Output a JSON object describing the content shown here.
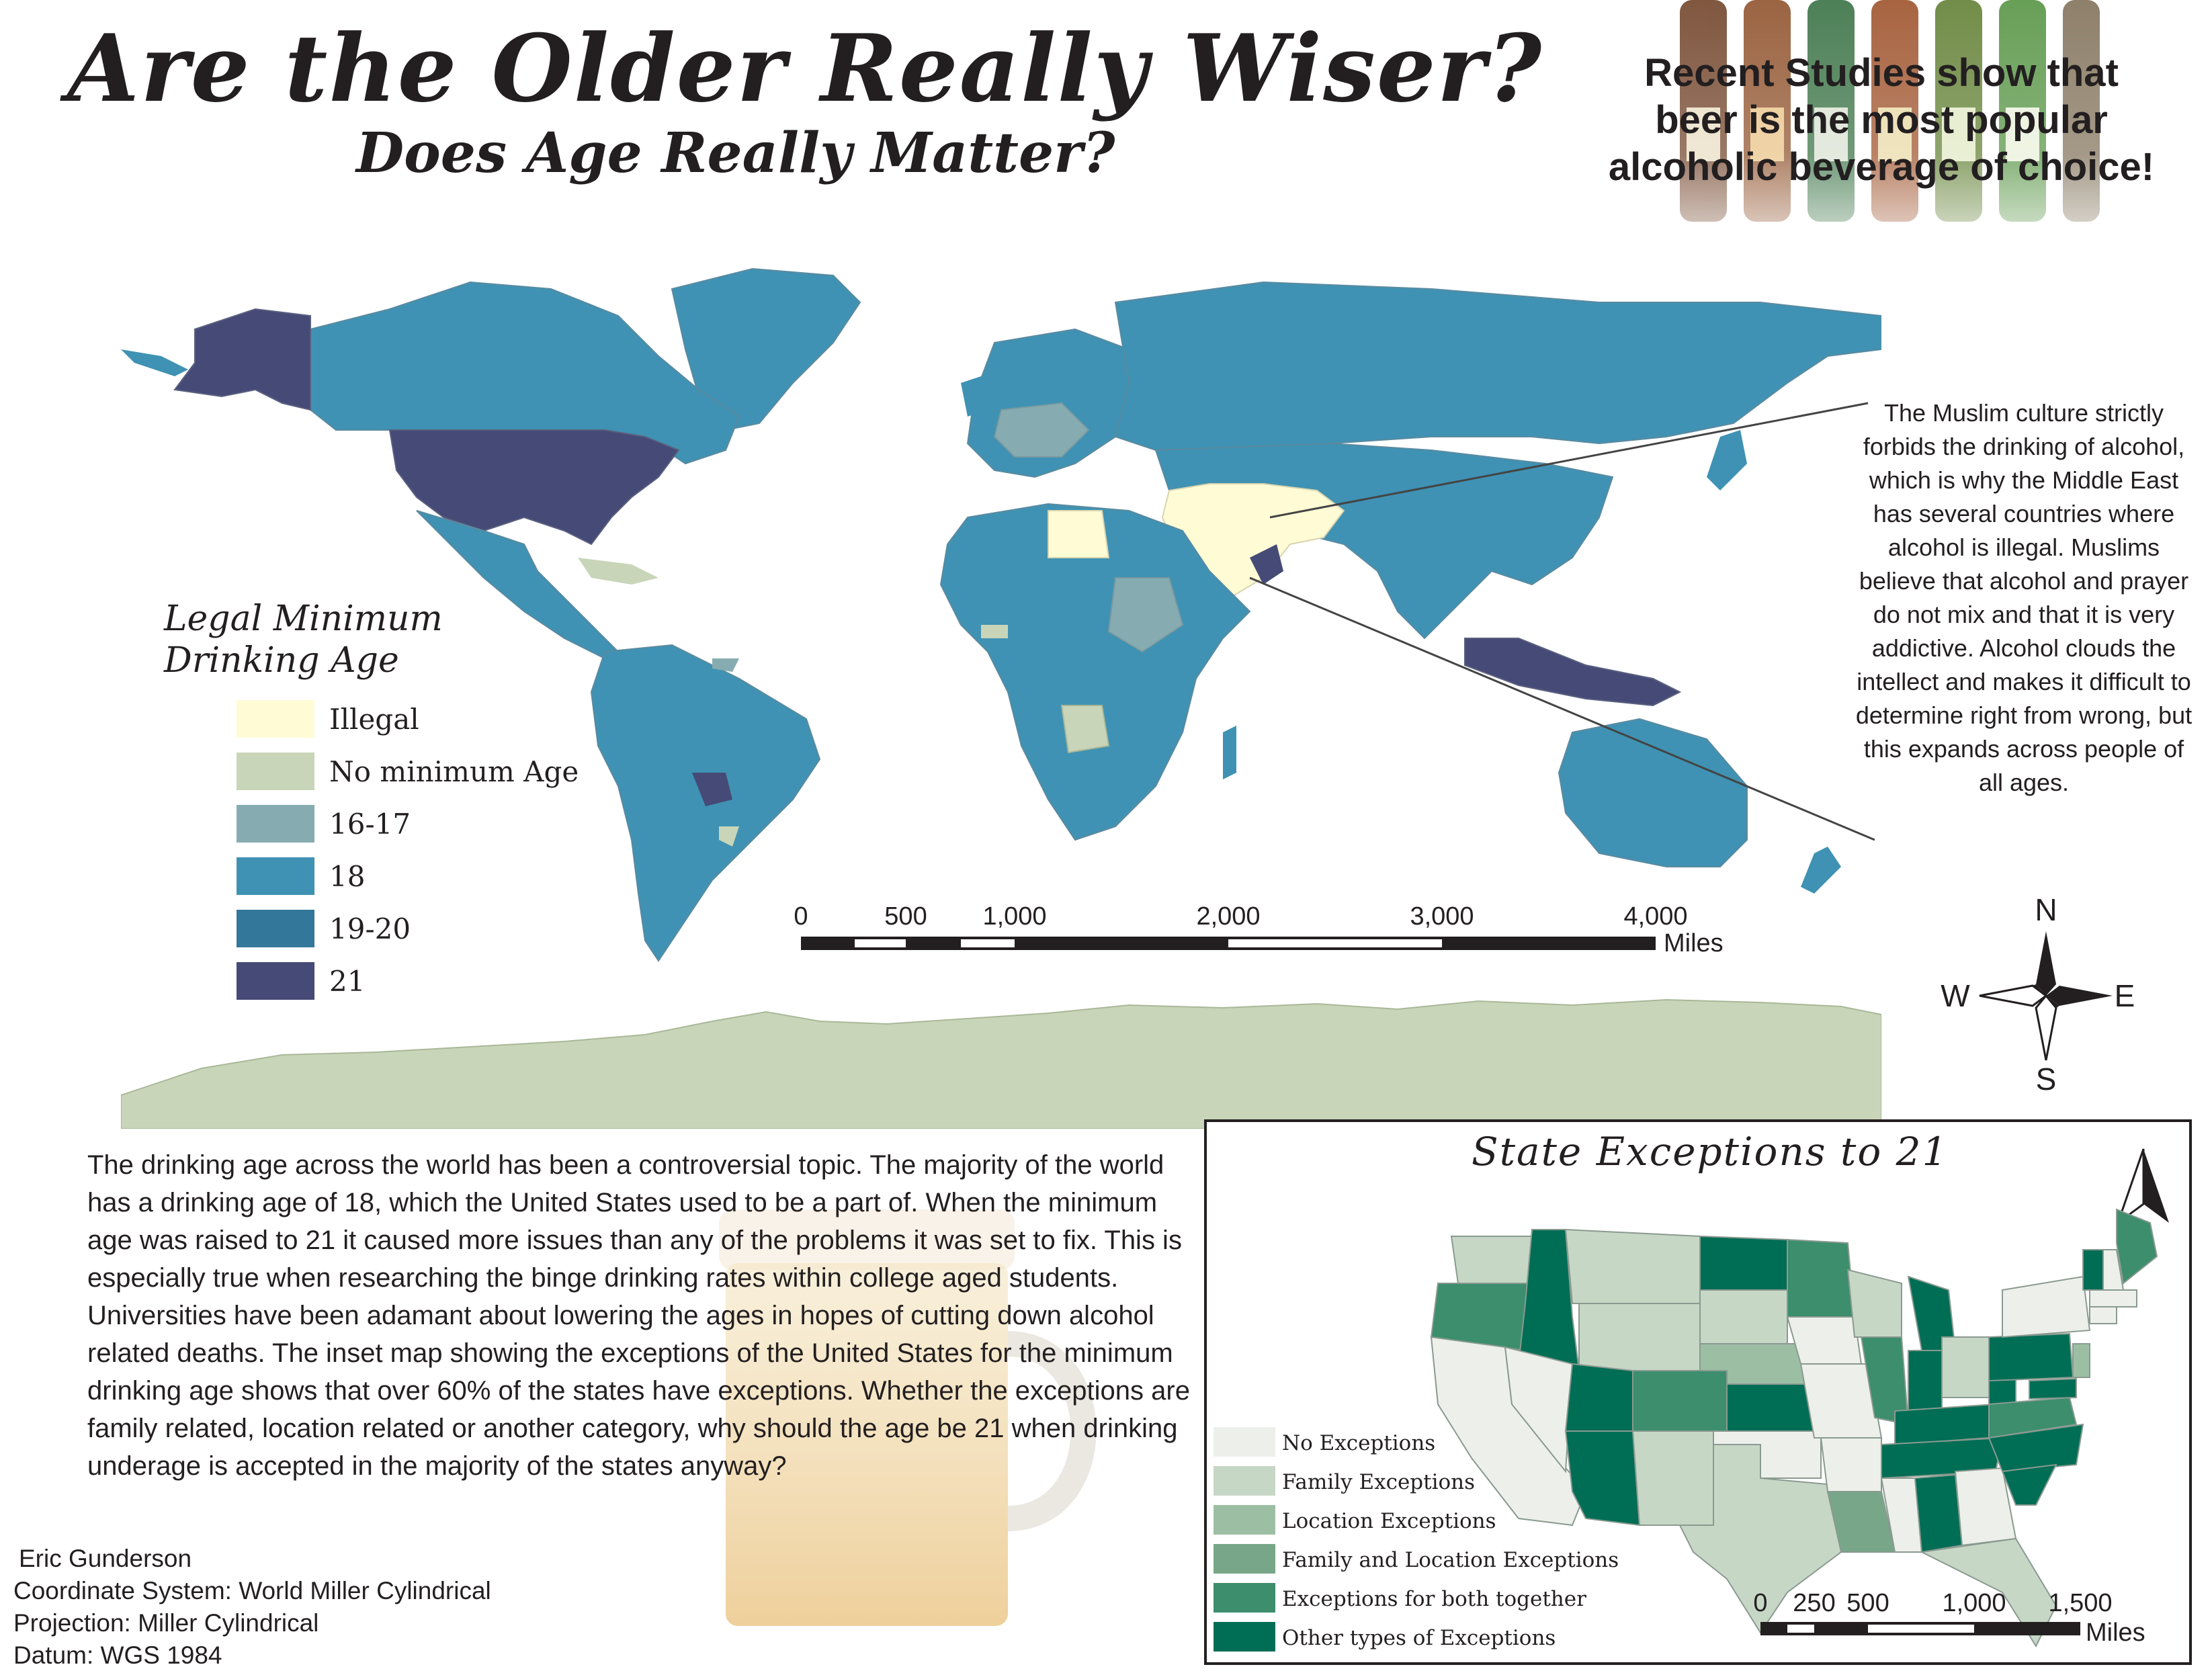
{
  "title": "Are the Older Really Wiser?",
  "subtitle": "Does Age Really Matter?",
  "beer_fact": {
    "line1": "Recent Studies show that",
    "line2": "beer is the most popular",
    "line3": "alcoholic beverage of choice!"
  },
  "colors": {
    "illegal": "#fffbd5",
    "no_minimum": "#c9d5b8",
    "age_16_17": "#86acb1",
    "age_18": "#3f92b3",
    "age_19_20": "#33779a",
    "age_21": "#464a76",
    "inset_none": "#edf0ea",
    "inset_family": "#c7d7c6",
    "inset_location": "#9cbfa4",
    "inset_family_location": "#77a788",
    "inset_both": "#3c8e6d",
    "inset_other": "#006d55"
  },
  "muslim_note": "The Muslim culture strictly forbids the drinking of alcohol, which is why the Middle East has several countries where alcohol is illegal. Muslims believe that alcohol and prayer do not mix and that it is very addictive. Alcohol clouds the intellect and makes it difficult to determine right from wrong, but this expands across people of all ages.",
  "legend": {
    "title_line1": "Legal Minimum",
    "title_line2": "Drinking Age",
    "items": [
      {
        "label": "Illegal"
      },
      {
        "label": "No minimum Age"
      },
      {
        "label": "16-17"
      },
      {
        "label": "18"
      },
      {
        "label": "19-20"
      },
      {
        "label": "21"
      }
    ]
  },
  "world_scale": {
    "labels": [
      "0",
      "500",
      "1,000",
      "2,000",
      "3,000",
      "4,000"
    ],
    "unit": "Miles"
  },
  "compass": {
    "n": "N",
    "s": "S",
    "e": "E",
    "w": "W"
  },
  "body_text": "The drinking age across the world has been a controversial topic. The majority of the world has a drinking age of 18, which the United States used to be a part of. When the minimum age was raised to 21 it caused more issues than any of the problems it was set to fix. This is especially true when researching the binge drinking rates within college aged students.  Universities have been adamant about lowering the ages in hopes of cutting down alcohol related deaths.  The inset map showing the exceptions of the United States for the minimum drinking age shows that over 60% of the states have exceptions. Whether the exceptions are family related, location related or another category, why should the age be 21 when drinking underage is accepted in the majority of the states anyway?",
  "credits": {
    "author": "Eric Gunderson",
    "coordinate_system": "Coordinate System: World Miller Cylindrical",
    "projection": "Projection: Miller Cylindrical",
    "datum": "Datum: WGS 1984"
  },
  "inset": {
    "title": "State Exceptions to 21",
    "north": "N",
    "legend": [
      {
        "label": "No Exceptions"
      },
      {
        "label": "Family Exceptions"
      },
      {
        "label": "Location Exceptions"
      },
      {
        "label": "Family and Location Exceptions"
      },
      {
        "label": "Exceptions for both together"
      },
      {
        "label": "Other types of Exceptions"
      }
    ],
    "scale": {
      "labels": [
        "0",
        "250",
        "500",
        "1,000",
        "1,500"
      ],
      "unit": "Miles"
    }
  }
}
